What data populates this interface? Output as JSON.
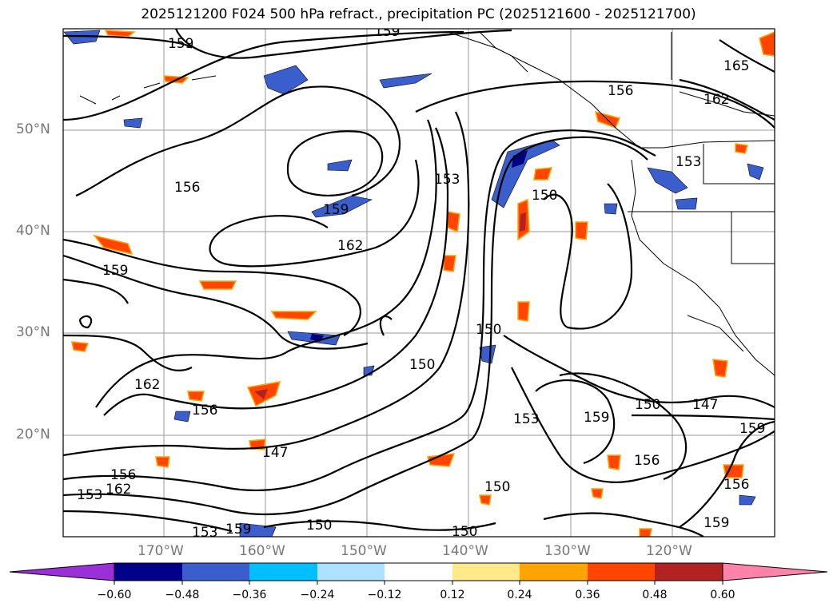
{
  "title": "2025121200 F024 500 hPa refract., precipitation PC (2025121600 - 2025121700)",
  "map": {
    "lat_labels": [
      "50°N",
      "40°N",
      "30°N",
      "20°N"
    ],
    "lon_labels": [
      "170°W",
      "160°W",
      "150°W",
      "140°W",
      "130°W",
      "120°W"
    ],
    "contour_labels": [
      "159",
      "159",
      "165",
      "162",
      "156",
      "153",
      "159",
      "150",
      "153",
      "156",
      "162",
      "159",
      "150",
      "162",
      "156",
      "147",
      "150",
      "153",
      "159",
      "150",
      "147",
      "156",
      "159",
      "156",
      "159",
      "162",
      "156",
      "153",
      "150",
      "150",
      "150",
      "159",
      "153"
    ],
    "fill_colors": {
      "orange_red": "#ff4500",
      "orange": "#ffa500",
      "dark_red": "#b22222",
      "light_blue": "#aee0ff",
      "blue": "#3a5fcd",
      "navy": "#000080",
      "deep_sky_blue": "#00bfff"
    }
  },
  "colorbar": {
    "colors": [
      "#9b30d9",
      "#00008b",
      "#3a5fcd",
      "#00bfff",
      "#aee0ff",
      "#ffffff",
      "#ffe98a",
      "#ffa500",
      "#ff4500",
      "#b22222",
      "#ff82ab"
    ],
    "tick_labels": [
      "−0.60",
      "−0.48",
      "−0.36",
      "−0.24",
      "−0.12",
      "0.12",
      "0.24",
      "0.36",
      "0.48",
      "0.60"
    ]
  }
}
